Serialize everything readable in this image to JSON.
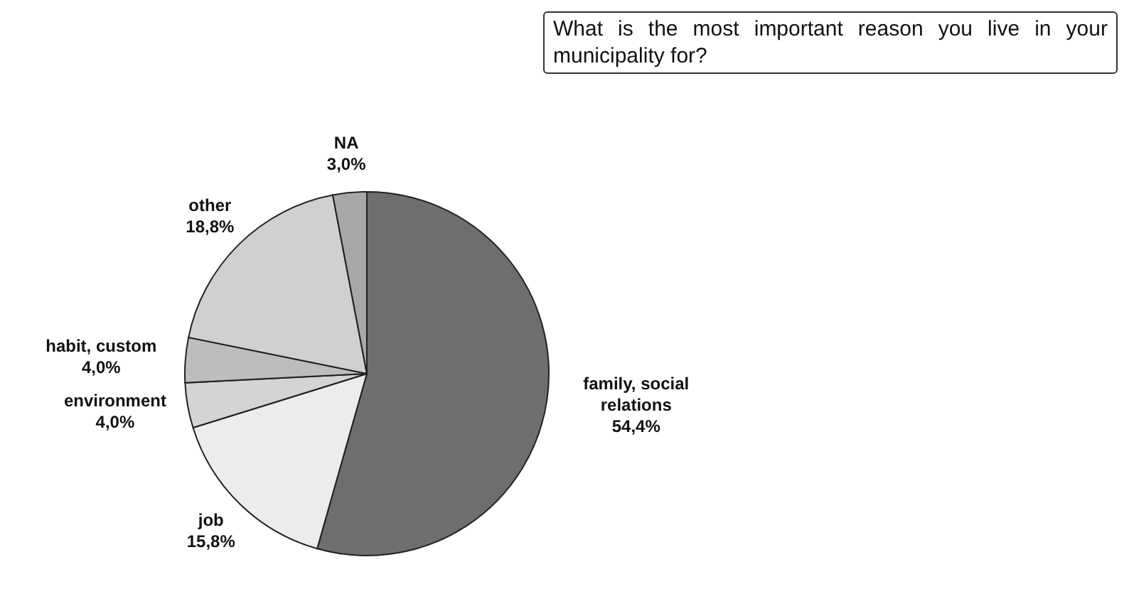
{
  "chart_data": {
    "type": "pie",
    "title": "What is the most important reason you live in your municipality for?",
    "categories": [
      "family, social relations",
      "job",
      "environment",
      "habit, custom",
      "other",
      "NA"
    ],
    "values": [
      54.4,
      15.8,
      4.0,
      4.0,
      18.8,
      3.0
    ],
    "value_labels": [
      "54,4%",
      "15,8%",
      "4,0%",
      "4,0%",
      "18,8%",
      "3,0%"
    ],
    "colors": [
      "#6e6e6e",
      "#ececec",
      "#d4d4d4",
      "#bdbdbd",
      "#d0d0d0",
      "#a8a8a8"
    ],
    "legend": false
  }
}
